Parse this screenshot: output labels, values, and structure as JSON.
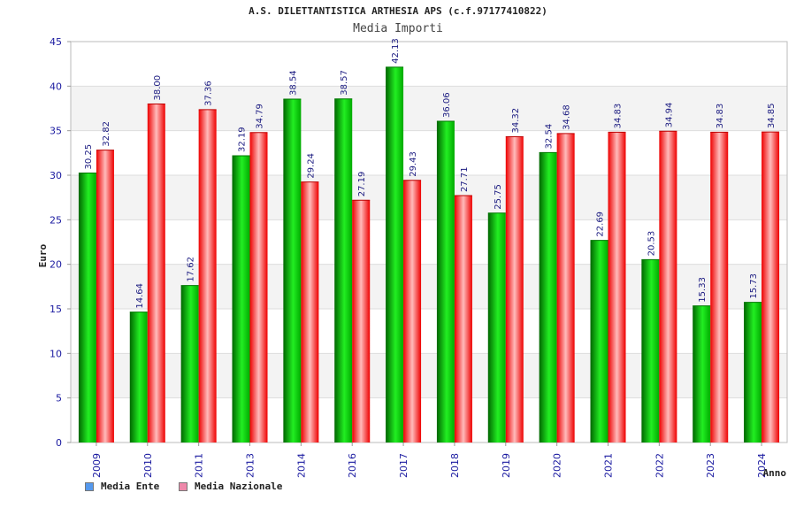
{
  "chart_data": {
    "type": "bar",
    "title": "A.S. DILETTANTISTICA ARTHESIA APS (c.f.97177410822)",
    "subtitle": "Media Importi",
    "ylabel": "Euro",
    "xlabel": "Anno",
    "ylim": [
      0,
      45
    ],
    "yticks": [
      "0",
      "5",
      "10",
      "15",
      "20",
      "25",
      "30",
      "35",
      "40",
      "45"
    ],
    "categories": [
      "2009",
      "2010",
      "2011",
      "2013",
      "2014",
      "2016",
      "2017",
      "2018",
      "2019",
      "2020",
      "2021",
      "2022",
      "2023",
      "2024"
    ],
    "series": [
      {
        "name": "Media Ente",
        "color": "#00bb00",
        "values": [
          30.25,
          14.64,
          17.62,
          32.19,
          38.54,
          38.57,
          42.13,
          36.06,
          25.75,
          32.54,
          22.69,
          20.53,
          15.33,
          15.73
        ],
        "labels": [
          "30.25",
          "14.64",
          "17.62",
          "32.19",
          "38.54",
          "38.57",
          "42.13",
          "36.06",
          "25.75",
          "32.54",
          "22.69",
          "20.53",
          "15.33",
          "15.73"
        ]
      },
      {
        "name": "Media Nazionale",
        "color": "#ee1111",
        "values": [
          32.82,
          38.0,
          37.36,
          34.79,
          29.24,
          27.19,
          29.43,
          27.71,
          34.32,
          34.68,
          34.83,
          34.94,
          34.83,
          34.85
        ],
        "labels": [
          "32.82",
          "38.00",
          "37.36",
          "34.79",
          "29.24",
          "27.19",
          "29.43",
          "27.71",
          "34.32",
          "34.68",
          "34.83",
          "34.94",
          "34.83",
          "34.85"
        ]
      }
    ],
    "legend": [
      {
        "label": "Media Ente",
        "color": "#5599ee"
      },
      {
        "label": "Media Nazionale",
        "color": "#ee88aa"
      }
    ],
    "grid": true,
    "legend_position": "bottom-left"
  }
}
